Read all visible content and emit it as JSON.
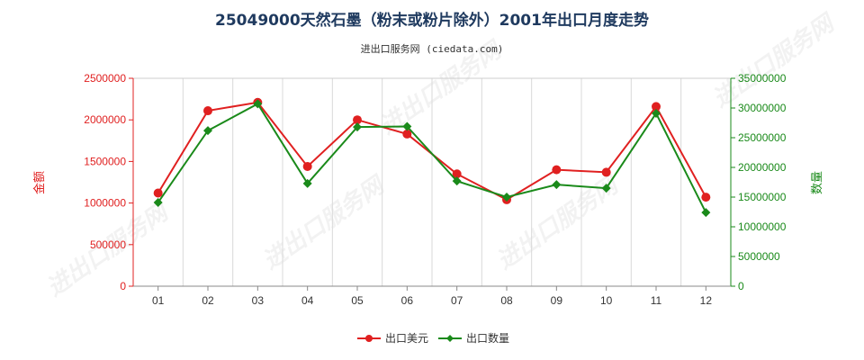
{
  "chart_data": {
    "type": "line",
    "title": "25049000天然石墨（粉末或粉片除外）2001年出口月度走势",
    "subtitle": "进出口服务网 (ciedata.com)",
    "categories": [
      "01",
      "02",
      "03",
      "04",
      "05",
      "06",
      "07",
      "08",
      "09",
      "10",
      "11",
      "12"
    ],
    "series": [
      {
        "name": "出口美元",
        "axis": "left",
        "color": "#e02020",
        "values": [
          1120000,
          2110000,
          2210000,
          1440000,
          2000000,
          1830000,
          1350000,
          1040000,
          1400000,
          1370000,
          2160000,
          1070000
        ]
      },
      {
        "name": "出口数量",
        "axis": "right",
        "color": "#1a8a1a",
        "values": [
          14100000,
          26200000,
          30700000,
          17300000,
          26800000,
          26900000,
          17700000,
          15000000,
          17100000,
          16500000,
          29100000,
          12400000
        ]
      }
    ],
    "y_left": {
      "label": "金额",
      "range": [
        0,
        2500000
      ],
      "ticks": [
        "0",
        "500000",
        "1000000",
        "1500000",
        "2000000",
        "2500000"
      ],
      "color": "#e02020"
    },
    "y_right": {
      "label": "数量",
      "range": [
        0,
        35000000
      ],
      "ticks": [
        "0",
        "5000000",
        "10000000",
        "15000000",
        "20000000",
        "25000000",
        "30000000",
        "35000000"
      ],
      "color": "#1a8a1a"
    },
    "grid": "vertical",
    "legend_position": "bottom-center",
    "watermark": "进出口服务网"
  }
}
